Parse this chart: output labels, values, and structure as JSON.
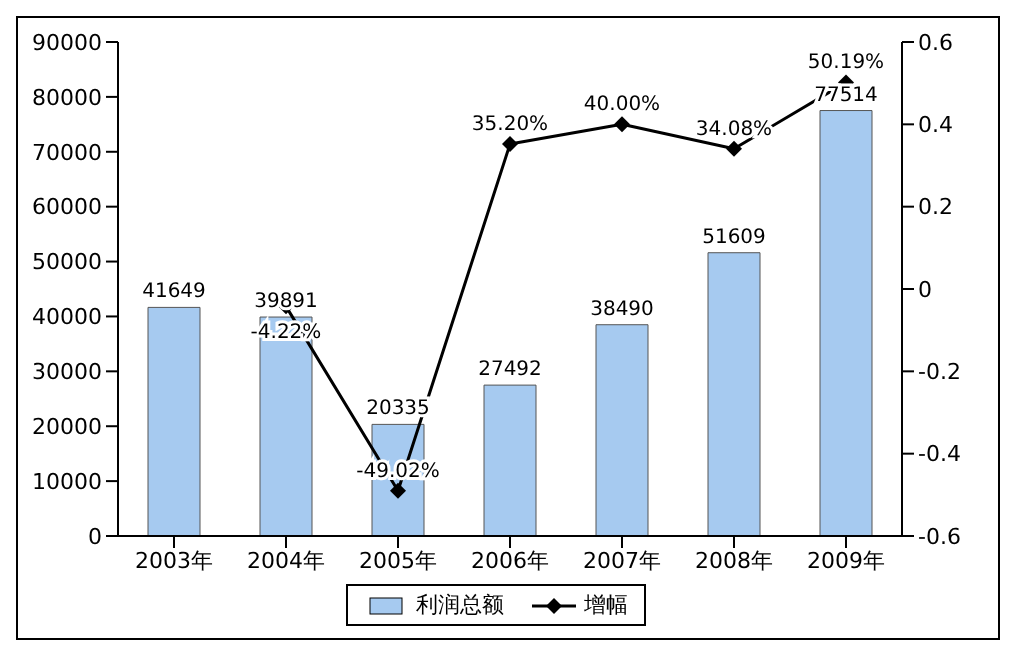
{
  "chart_data": {
    "type": "bar",
    "categories": [
      "2003年",
      "2004年",
      "2005年",
      "2006年",
      "2007年",
      "2008年",
      "2009年"
    ],
    "series": [
      {
        "name": "利润总额",
        "color": "#a6caf0",
        "values": [
          41649,
          39891,
          20335,
          27492,
          38490,
          51609,
          77514
        ],
        "data_labels": true
      },
      {
        "name": "增幅",
        "type": "line",
        "axis": "y2",
        "color": "#000000",
        "marker": "diamond",
        "values": [
          null,
          -0.0422,
          -0.4902,
          0.352,
          0.4,
          0.3408,
          0.5019
        ],
        "value_labels": [
          null,
          "-4.22%",
          "-49.02%",
          "35.20%",
          "40.00%",
          "34.08%",
          "50.19%"
        ]
      }
    ],
    "ylim": [
      0,
      90000
    ],
    "yticks": [
      0,
      10000,
      20000,
      30000,
      40000,
      50000,
      60000,
      70000,
      80000,
      90000
    ],
    "y2lim": [
      -0.6,
      0.6
    ],
    "y2ticks": [
      -0.6,
      -0.4,
      -0.2,
      0,
      0.2,
      0.4,
      0.6
    ],
    "grid": false,
    "legend": "bottom"
  }
}
